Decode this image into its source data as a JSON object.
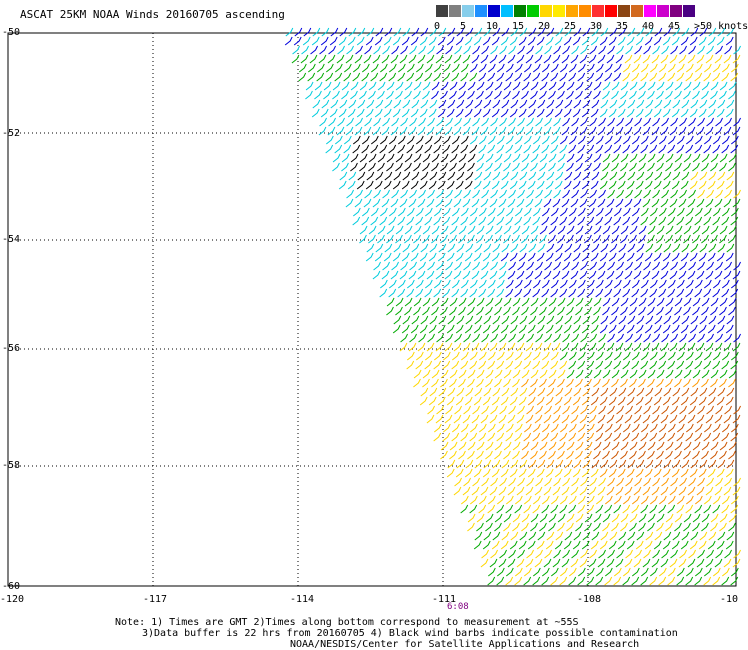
{
  "title": "ASCAT 25KM NOAA Winds 20160705 ascending",
  "colorbar": {
    "colors": [
      "#404040",
      "#808080",
      "#87ceeb",
      "#1e90ff",
      "#0000cd",
      "#00bfff",
      "#008000",
      "#00cc00",
      "#ffd700",
      "#ffea00",
      "#ffa500",
      "#ff8c00",
      "#ff3030",
      "#ff0000",
      "#8b4513",
      "#d2691e",
      "#ff00ff",
      "#cc00cc",
      "#800080",
      "#4b0082"
    ],
    "labels": [
      "0",
      "5",
      "10",
      "15",
      "20",
      "25",
      "30",
      "35",
      "40",
      "45",
      ">50 knots"
    ]
  },
  "axes": {
    "y_ticks": [
      "-50",
      "-52",
      "-54",
      "-56",
      "-58",
      "-60"
    ],
    "x_ticks": [
      "-120",
      "-117",
      "-114",
      "-111",
      "-108",
      "-10"
    ]
  },
  "time_label": "6:08",
  "notes": [
    "Note: 1) Times are GMT 2)Times along bottom correspond to measurement at ~55S",
    "3)Data buffer is 22 hrs from 20160705 4) Black wind barbs indicate possible contamination",
    "NOAA/NESDIS/Center for Satellite Applications and Research"
  ],
  "wind_zones": [
    {
      "name": "weak",
      "color": "#000000"
    },
    {
      "name": "cyan",
      "color": "#00ccdd"
    },
    {
      "name": "blue",
      "color": "#0000dd"
    },
    {
      "name": "green",
      "color": "#00aa00"
    },
    {
      "name": "yellow",
      "color": "#ffd700"
    },
    {
      "name": "orange",
      "color": "#ff9900"
    },
    {
      "name": "brown",
      "color": "#cc5500"
    }
  ]
}
